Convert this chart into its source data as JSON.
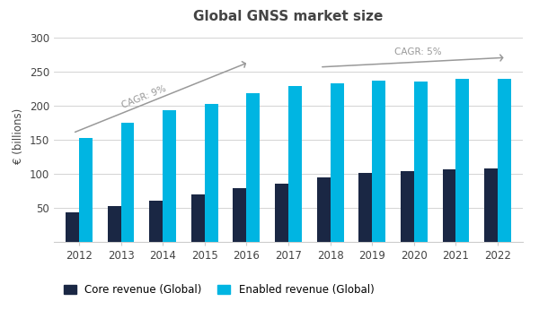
{
  "title": "Global GNSS market size",
  "years": [
    2012,
    2013,
    2014,
    2015,
    2016,
    2017,
    2018,
    2019,
    2020,
    2021,
    2022
  ],
  "core_revenue": [
    43,
    53,
    61,
    70,
    79,
    85,
    95,
    101,
    104,
    107,
    108
  ],
  "enabled_revenue": [
    153,
    175,
    194,
    203,
    219,
    229,
    233,
    237,
    236,
    240,
    240
  ],
  "core_color": "#1a2744",
  "enabled_color": "#00b5e2",
  "ylabel": "€ (billions)",
  "ylim": [
    0,
    310
  ],
  "yticks": [
    0,
    50,
    100,
    150,
    200,
    250,
    300
  ],
  "legend_core": "Core revenue (Global)",
  "legend_enabled": "Enabled revenue (Global)",
  "cagr1_text": "CAGR: 9%",
  "cagr2_text": "CAGR: 5%",
  "bg_color": "#ffffff",
  "grid_color": "#cccccc",
  "title_color": "#444444",
  "tick_color": "#444444",
  "arrow_color": "#999999"
}
